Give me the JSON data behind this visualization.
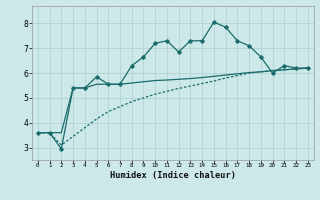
{
  "xlabel": "Humidex (Indice chaleur)",
  "bg_color": "#cce8e8",
  "grid_color": "#aacfcf",
  "line_color": "#1a6b6b",
  "xlim": [
    -0.5,
    23.5
  ],
  "ylim": [
    2.5,
    8.7
  ],
  "yticks": [
    3,
    4,
    5,
    6,
    7,
    8
  ],
  "xticks": [
    0,
    1,
    2,
    3,
    4,
    5,
    6,
    7,
    8,
    9,
    10,
    11,
    12,
    13,
    14,
    15,
    16,
    17,
    18,
    19,
    20,
    21,
    22,
    23
  ],
  "series1_x": [
    0,
    1,
    2,
    3,
    4,
    5,
    6,
    7,
    8,
    9,
    10,
    11,
    12,
    13,
    14,
    15,
    16,
    17,
    18,
    19,
    20,
    21,
    22,
    23
  ],
  "series1_y": [
    3.6,
    3.6,
    2.95,
    5.4,
    5.4,
    5.85,
    5.55,
    5.55,
    6.3,
    6.65,
    7.2,
    7.3,
    6.85,
    7.3,
    7.3,
    8.05,
    7.85,
    7.3,
    7.1,
    6.65,
    6.0,
    6.3,
    6.2,
    6.2
  ],
  "series2_x": [
    0,
    1,
    2,
    3,
    4,
    5,
    6,
    7,
    8,
    9,
    10,
    11,
    12,
    13,
    14,
    15,
    16,
    17,
    18,
    19,
    20,
    21,
    22,
    23
  ],
  "series2_y": [
    3.6,
    3.6,
    3.6,
    5.4,
    5.4,
    5.55,
    5.55,
    5.55,
    5.6,
    5.65,
    5.7,
    5.72,
    5.75,
    5.78,
    5.82,
    5.87,
    5.92,
    5.97,
    6.02,
    6.05,
    6.1,
    6.13,
    6.17,
    6.2
  ],
  "series3_x": [
    0,
    1,
    2,
    3,
    4,
    5,
    6,
    7,
    8,
    9,
    10,
    11,
    12,
    13,
    14,
    15,
    16,
    17,
    18,
    19,
    20,
    21,
    22,
    23
  ],
  "series3_y": [
    3.6,
    3.6,
    3.1,
    3.45,
    3.8,
    4.15,
    4.45,
    4.65,
    4.85,
    5.0,
    5.15,
    5.27,
    5.38,
    5.48,
    5.58,
    5.68,
    5.8,
    5.9,
    6.0,
    6.05,
    6.1,
    6.13,
    6.17,
    6.2
  ]
}
